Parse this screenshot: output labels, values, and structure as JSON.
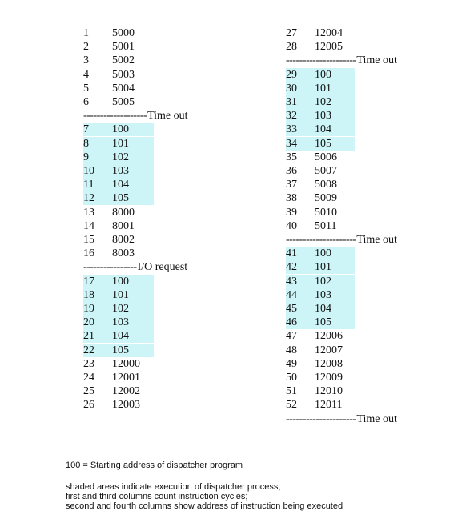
{
  "left_column": [
    {
      "type": "row",
      "cycle": "1",
      "address": "5000",
      "shaded": false
    },
    {
      "type": "row",
      "cycle": "2",
      "address": "5001",
      "shaded": false
    },
    {
      "type": "row",
      "cycle": "3",
      "address": "5002",
      "shaded": false
    },
    {
      "type": "row",
      "cycle": "4",
      "address": "5003",
      "shaded": false
    },
    {
      "type": "row",
      "cycle": "5",
      "address": "5004",
      "shaded": false
    },
    {
      "type": "row",
      "cycle": "6",
      "address": "5005",
      "shaded": false
    },
    {
      "type": "separator",
      "dashes": "-------------------",
      "label": "Time out"
    },
    {
      "type": "row",
      "cycle": "7",
      "address": "100",
      "shaded": true
    },
    {
      "type": "row",
      "cycle": "8",
      "address": "101",
      "shaded": true
    },
    {
      "type": "row",
      "cycle": "9",
      "address": "102",
      "shaded": true
    },
    {
      "type": "row",
      "cycle": "10",
      "address": "103",
      "shaded": true
    },
    {
      "type": "row",
      "cycle": "11",
      "address": "104",
      "shaded": true
    },
    {
      "type": "row",
      "cycle": "12",
      "address": "105",
      "shaded": true
    },
    {
      "type": "row",
      "cycle": "13",
      "address": "8000",
      "shaded": false
    },
    {
      "type": "row",
      "cycle": "14",
      "address": "8001",
      "shaded": false
    },
    {
      "type": "row",
      "cycle": "15",
      "address": "8002",
      "shaded": false
    },
    {
      "type": "row",
      "cycle": "16",
      "address": "8003",
      "shaded": false
    },
    {
      "type": "separator",
      "dashes": "----------------",
      "label": "I/O request"
    },
    {
      "type": "row",
      "cycle": "17",
      "address": "100",
      "shaded": true
    },
    {
      "type": "row",
      "cycle": "18",
      "address": "101",
      "shaded": true
    },
    {
      "type": "row",
      "cycle": "19",
      "address": "102",
      "shaded": true
    },
    {
      "type": "row",
      "cycle": "20",
      "address": "103",
      "shaded": true
    },
    {
      "type": "row",
      "cycle": "21",
      "address": "104",
      "shaded": true
    },
    {
      "type": "row",
      "cycle": "22",
      "address": "105",
      "shaded": true
    },
    {
      "type": "row",
      "cycle": "23",
      "address": "12000",
      "shaded": false
    },
    {
      "type": "row",
      "cycle": "24",
      "address": "12001",
      "shaded": false
    },
    {
      "type": "row",
      "cycle": "25",
      "address": "12002",
      "shaded": false
    },
    {
      "type": "row",
      "cycle": "26",
      "address": "12003",
      "shaded": false
    }
  ],
  "right_column": [
    {
      "type": "row",
      "cycle": "27",
      "address": "12004",
      "shaded": false
    },
    {
      "type": "row",
      "cycle": "28",
      "address": "12005",
      "shaded": false
    },
    {
      "type": "separator",
      "dashes": "---------------------",
      "label": "Time out"
    },
    {
      "type": "row",
      "cycle": "29",
      "address": "100",
      "shaded": true
    },
    {
      "type": "row",
      "cycle": "30",
      "address": "101",
      "shaded": true
    },
    {
      "type": "row",
      "cycle": "31",
      "address": "102",
      "shaded": true
    },
    {
      "type": "row",
      "cycle": "32",
      "address": "103",
      "shaded": true
    },
    {
      "type": "row",
      "cycle": "33",
      "address": "104",
      "shaded": true
    },
    {
      "type": "row",
      "cycle": "34",
      "address": "105",
      "shaded": true
    },
    {
      "type": "row",
      "cycle": "35",
      "address": "5006",
      "shaded": false
    },
    {
      "type": "row",
      "cycle": "36",
      "address": "5007",
      "shaded": false
    },
    {
      "type": "row",
      "cycle": "37",
      "address": "5008",
      "shaded": false
    },
    {
      "type": "row",
      "cycle": "38",
      "address": "5009",
      "shaded": false
    },
    {
      "type": "row",
      "cycle": "39",
      "address": "5010",
      "shaded": false
    },
    {
      "type": "row",
      "cycle": "40",
      "address": "5011",
      "shaded": false
    },
    {
      "type": "separator",
      "dashes": "---------------------",
      "label": "Time out"
    },
    {
      "type": "row",
      "cycle": "41",
      "address": "100",
      "shaded": true
    },
    {
      "type": "row",
      "cycle": "42",
      "address": "101",
      "shaded": true
    },
    {
      "type": "row",
      "cycle": "43",
      "address": "102",
      "shaded": true
    },
    {
      "type": "row",
      "cycle": "44",
      "address": "103",
      "shaded": true
    },
    {
      "type": "row",
      "cycle": "45",
      "address": "104",
      "shaded": true
    },
    {
      "type": "row",
      "cycle": "46",
      "address": "105",
      "shaded": true
    },
    {
      "type": "row",
      "cycle": "47",
      "address": "12006",
      "shaded": false
    },
    {
      "type": "row",
      "cycle": "48",
      "address": "12007",
      "shaded": false
    },
    {
      "type": "row",
      "cycle": "49",
      "address": "12008",
      "shaded": false
    },
    {
      "type": "row",
      "cycle": "50",
      "address": "12009",
      "shaded": false
    },
    {
      "type": "row",
      "cycle": "51",
      "address": "12010",
      "shaded": false
    },
    {
      "type": "row",
      "cycle": "52",
      "address": "12011",
      "shaded": false
    },
    {
      "type": "separator",
      "dashes": "---------------------",
      "label": "Time out"
    }
  ],
  "notes": {
    "legend": "100 = Starting address of dispatcher program",
    "line1": "shaded areas indicate execution of dispatcher process;",
    "line2": "first and third columns count instruction cycles;",
    "line3": "second and fourth columns show address of instruction being executed"
  },
  "colors": {
    "shade": "#cdf5f7",
    "text": "#111111"
  }
}
